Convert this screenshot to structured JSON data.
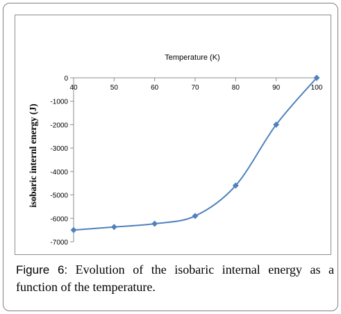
{
  "chart_data": {
    "type": "line",
    "title": "",
    "xlabel": "Temperature (K)",
    "ylabel": "isobaric internl energy   (J)",
    "x": [
      40,
      50,
      60,
      70,
      80,
      90,
      100
    ],
    "series": [
      {
        "values": [
          -6500,
          -6370,
          -6230,
          -5900,
          -4600,
          -2000,
          0
        ]
      }
    ],
    "xlim": [
      40,
      100
    ],
    "ylim": [
      -7000,
      0
    ],
    "xticks": [
      "40",
      "50",
      "60",
      "70",
      "80",
      "90",
      "100"
    ],
    "yticks": [
      "0",
      "-1000",
      "-2000",
      "-3000",
      "-4000",
      "-5000",
      "-6000",
      "-7000"
    ],
    "x_axis_position": "top",
    "grid": false,
    "legend": "none",
    "line_color": "#4f81bd",
    "marker": "diamond"
  },
  "caption": {
    "label": "Figure 6:",
    "text": " Evolution of the isobaric internal energy as a function of the temperature."
  }
}
